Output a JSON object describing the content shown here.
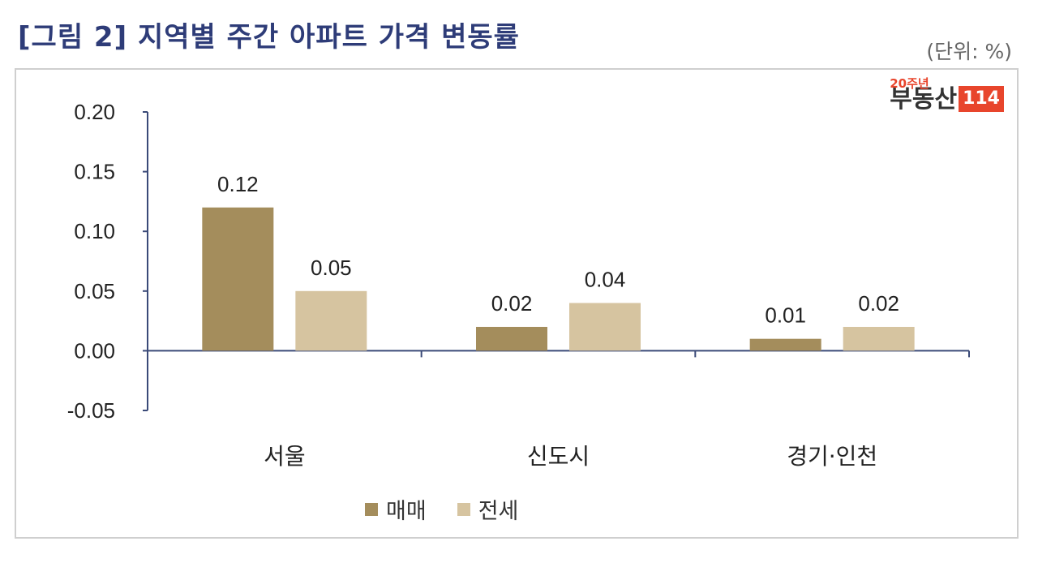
{
  "title": "[그림 2] 지역별 주간 아파트 가격 변동률",
  "unit_label": "(단위: %)",
  "logo": {
    "superscript": "20주년",
    "text": "부동산",
    "box": "114"
  },
  "colors": {
    "series_sale": "#a48d5c",
    "series_jeonse": "#d6c4a0",
    "axis": "#3a4a78",
    "title": "#2e3c78"
  },
  "chart_data": {
    "type": "bar",
    "categories": [
      "서울",
      "신도시",
      "경기·인천"
    ],
    "series": [
      {
        "name": "매매",
        "values": [
          0.12,
          0.02,
          0.01
        ]
      },
      {
        "name": "전세",
        "values": [
          0.05,
          0.04,
          0.02
        ]
      }
    ],
    "ylim": [
      -0.05,
      0.2
    ],
    "yticks": [
      "0.20",
      "0.15",
      "0.10",
      "0.05",
      "0.00",
      "-0.05"
    ],
    "data_labels": [
      [
        "0.12",
        "0.02",
        "0.01"
      ],
      [
        "0.05",
        "0.04",
        "0.02"
      ]
    ],
    "legend_position": "bottom",
    "grid": false
  }
}
